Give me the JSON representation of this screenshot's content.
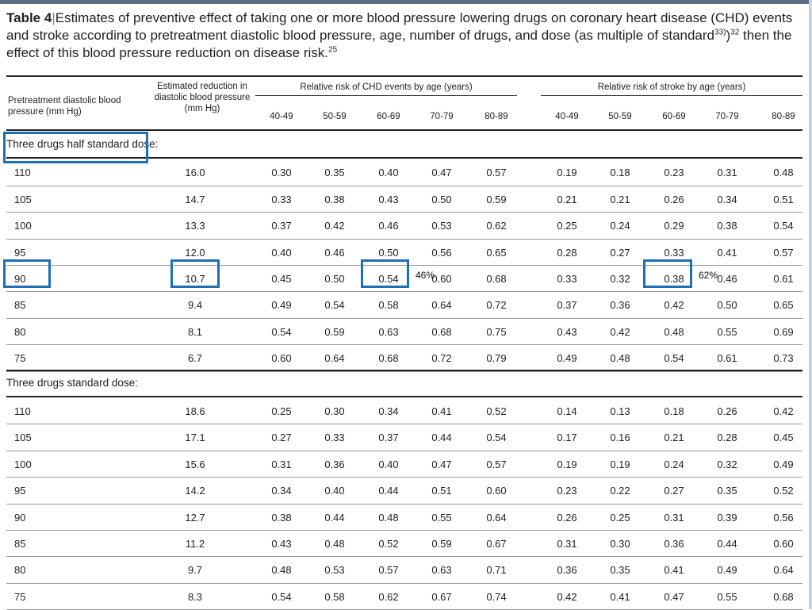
{
  "caption": {
    "table_label": "Table 4",
    "text_part1": "Estimates of preventive effect of taking one or more blood pressure lowering drugs on coronary heart disease (CHD) events and stroke according to pretreatment diastolic blood pressure, age, number of drugs, and dose (as multiple of standard",
    "sup1": "33)",
    "text_part2": ")",
    "sup2": "32",
    "text_part3": " then the effect of this blood pressure reduction on disease risk.",
    "sup3": "25"
  },
  "headers": {
    "col_dbp": "Pretreatment diastolic blood pressure (mm Hg)",
    "col_reduction": "Estimated reduction in diastolic blood pressure (mm Hg)",
    "group_chd": "Relative risk of CHD events by age (years)",
    "group_stroke": "Relative risk of stroke by age (years)",
    "ages": [
      "40-49",
      "50-59",
      "60-69",
      "70-79",
      "80-89"
    ]
  },
  "sections": [
    {
      "title": "Three drugs half standard dose:",
      "rows": [
        {
          "dbp": "110",
          "red": "16.0",
          "chd": [
            "0.30",
            "0.35",
            "0.40",
            "0.47",
            "0.57"
          ],
          "stroke": [
            "0.19",
            "0.18",
            "0.23",
            "0.31",
            "0.48"
          ]
        },
        {
          "dbp": "105",
          "red": "14.7",
          "chd": [
            "0.33",
            "0.38",
            "0.43",
            "0.50",
            "0.59"
          ],
          "stroke": [
            "0.21",
            "0.21",
            "0.26",
            "0.34",
            "0.51"
          ]
        },
        {
          "dbp": "100",
          "red": "13.3",
          "chd": [
            "0.37",
            "0.42",
            "0.46",
            "0.53",
            "0.62"
          ],
          "stroke": [
            "0.25",
            "0.24",
            "0.29",
            "0.38",
            "0.54"
          ]
        },
        {
          "dbp": "95",
          "red": "12.0",
          "chd": [
            "0.40",
            "0.46",
            "0.50",
            "0.56",
            "0.65"
          ],
          "stroke": [
            "0.28",
            "0.27",
            "0.33",
            "0.41",
            "0.57"
          ]
        },
        {
          "dbp": "90",
          "red": "10.7",
          "chd": [
            "0.45",
            "0.50",
            "0.54",
            "0.60",
            "0.68"
          ],
          "stroke": [
            "0.33",
            "0.32",
            "0.38",
            "0.46",
            "0.61"
          ]
        },
        {
          "dbp": "85",
          "red": "9.4",
          "chd": [
            "0.49",
            "0.54",
            "0.58",
            "0.64",
            "0.72"
          ],
          "stroke": [
            "0.37",
            "0.36",
            "0.42",
            "0.50",
            "0.65"
          ]
        },
        {
          "dbp": "80",
          "red": "8.1",
          "chd": [
            "0.54",
            "0.59",
            "0.63",
            "0.68",
            "0.75"
          ],
          "stroke": [
            "0.43",
            "0.42",
            "0.48",
            "0.55",
            "0.69"
          ]
        },
        {
          "dbp": "75",
          "red": "6.7",
          "chd": [
            "0.60",
            "0.64",
            "0.68",
            "0.72",
            "0.79"
          ],
          "stroke": [
            "0.49",
            "0.48",
            "0.54",
            "0.61",
            "0.73"
          ]
        }
      ]
    },
    {
      "title": "Three drugs standard dose:",
      "rows": [
        {
          "dbp": "110",
          "red": "18.6",
          "chd": [
            "0.25",
            "0.30",
            "0.34",
            "0.41",
            "0.52"
          ],
          "stroke": [
            "0.14",
            "0.13",
            "0.18",
            "0.26",
            "0.42"
          ]
        },
        {
          "dbp": "105",
          "red": "17.1",
          "chd": [
            "0.27",
            "0.33",
            "0.37",
            "0.44",
            "0.54"
          ],
          "stroke": [
            "0.17",
            "0.16",
            "0.21",
            "0.28",
            "0.45"
          ]
        },
        {
          "dbp": "100",
          "red": "15.6",
          "chd": [
            "0.31",
            "0.36",
            "0.40",
            "0.47",
            "0.57"
          ],
          "stroke": [
            "0.19",
            "0.19",
            "0.24",
            "0.32",
            "0.49"
          ]
        },
        {
          "dbp": "95",
          "red": "14.2",
          "chd": [
            "0.34",
            "0.40",
            "0.44",
            "0.51",
            "0.60"
          ],
          "stroke": [
            "0.23",
            "0.22",
            "0.27",
            "0.35",
            "0.52"
          ]
        },
        {
          "dbp": "90",
          "red": "12.7",
          "chd": [
            "0.38",
            "0.44",
            "0.48",
            "0.55",
            "0.64"
          ],
          "stroke": [
            "0.26",
            "0.25",
            "0.31",
            "0.39",
            "0.56"
          ]
        },
        {
          "dbp": "85",
          "red": "11.2",
          "chd": [
            "0.43",
            "0.48",
            "0.52",
            "0.59",
            "0.67"
          ],
          "stroke": [
            "0.31",
            "0.30",
            "0.36",
            "0.44",
            "0.60"
          ]
        },
        {
          "dbp": "80",
          "red": "9.7",
          "chd": [
            "0.48",
            "0.53",
            "0.57",
            "0.63",
            "0.71"
          ],
          "stroke": [
            "0.36",
            "0.35",
            "0.41",
            "0.49",
            "0.64"
          ]
        },
        {
          "dbp": "75",
          "red": "8.3",
          "chd": [
            "0.54",
            "0.58",
            "0.62",
            "0.67",
            "0.74"
          ],
          "stroke": [
            "0.42",
            "0.41",
            "0.47",
            "0.55",
            "0.68"
          ]
        }
      ]
    }
  ],
  "annotations": {
    "chd_percent": "46%",
    "stroke_percent": "62%",
    "highlight_color": "#1f6fb5"
  }
}
